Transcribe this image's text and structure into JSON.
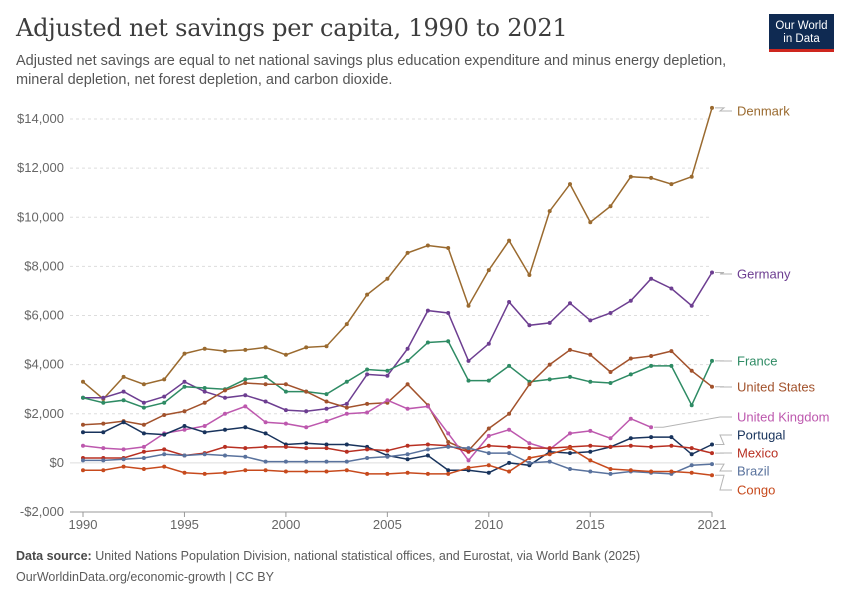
{
  "header": {
    "title": "Adjusted net savings per capita, 1990 to 2021",
    "subtitle": "Adjusted net savings are equal to net national savings plus education expenditure and minus energy depletion, mineral depletion, net forest depletion, and carbon dioxide.",
    "logo_line1": "Our World",
    "logo_line2": "in Data"
  },
  "footer": {
    "source_label": "Data source:",
    "source_text": " United Nations Population Division, national statistical offices, and Eurostat, via World Bank (2025)",
    "url": "OurWorldinData.org/economic-growth | CC BY"
  },
  "chart_data": {
    "type": "line",
    "xlim": [
      1989.5,
      2021.5
    ],
    "ylim": [
      -2000,
      14500
    ],
    "x_ticks": [
      1990,
      1995,
      2000,
      2005,
      2010,
      2015,
      2021
    ],
    "y_ticks": [
      -2000,
      0,
      2000,
      4000,
      6000,
      8000,
      10000,
      12000,
      14000
    ],
    "y_tick_labels": [
      "-$2,000",
      "$0",
      "$2,000",
      "$4,000",
      "$6,000",
      "$8,000",
      "$10,000",
      "$12,000",
      "$14,000"
    ],
    "grid": "horizontal dashed",
    "legend": "right, labels at line ends",
    "series": [
      {
        "name": "Denmark",
        "color": "#9a6a2f",
        "start": 1990,
        "values": [
          3300,
          2600,
          3500,
          3200,
          3400,
          4450,
          4650,
          4550,
          4600,
          4700,
          4400,
          4700,
          4750,
          5650,
          6850,
          7500,
          8550,
          8850,
          8750,
          6400,
          7850,
          9050,
          7650,
          10250,
          11350,
          9800,
          10450,
          11650,
          11600,
          11350,
          11650,
          14450
        ]
      },
      {
        "name": "Germany",
        "color": "#6d3e91",
        "start": 1990,
        "values": [
          2650,
          2650,
          2900,
          2450,
          2700,
          3300,
          2900,
          2650,
          2750,
          2500,
          2150,
          2100,
          2200,
          2400,
          3600,
          3550,
          4650,
          6200,
          6100,
          4150,
          4850,
          6550,
          5600,
          5700,
          6500,
          5800,
          6100,
          6600,
          7500,
          7100,
          6400,
          7750
        ]
      },
      {
        "name": "France",
        "color": "#2e8b64",
        "start": 1990,
        "values": [
          2650,
          2450,
          2550,
          2250,
          2450,
          3100,
          3050,
          3000,
          3400,
          3500,
          2900,
          2900,
          2800,
          3300,
          3800,
          3750,
          4150,
          4900,
          4950,
          3350,
          3350,
          3950,
          3300,
          3400,
          3500,
          3300,
          3250,
          3600,
          3950,
          3950,
          2350,
          4150
        ]
      },
      {
        "name": "United States",
        "color": "#a2522c",
        "start": 1990,
        "values": [
          1550,
          1600,
          1700,
          1550,
          1950,
          2100,
          2450,
          2950,
          3250,
          3200,
          3200,
          2900,
          2500,
          2250,
          2400,
          2450,
          3200,
          2350,
          850,
          500,
          1400,
          2000,
          3200,
          4000,
          4600,
          4400,
          3700,
          4250,
          4350,
          4550,
          3750,
          3100
        ]
      },
      {
        "name": "United Kingdom",
        "color": "#bd58ae",
        "start": 1990,
        "values": [
          700,
          600,
          550,
          650,
          1200,
          1350,
          1500,
          2000,
          2300,
          1650,
          1600,
          1450,
          1700,
          2000,
          2050,
          2550,
          2200,
          2300,
          1200,
          100,
          1100,
          1350,
          800,
          550,
          1200,
          1300,
          1000,
          1800,
          1450
        ]
      },
      {
        "name": "Portugal",
        "color": "#18335c",
        "start": 1990,
        "values": [
          1250,
          1250,
          1650,
          1200,
          1150,
          1500,
          1250,
          1350,
          1450,
          1200,
          750,
          800,
          750,
          750,
          650,
          300,
          150,
          300,
          -300,
          -300,
          -400,
          0,
          -100,
          450,
          400,
          450,
          650,
          1000,
          1050,
          1050,
          350,
          750
        ]
      },
      {
        "name": "Mexico",
        "color": "#b83022",
        "start": 1990,
        "values": [
          200,
          200,
          200,
          450,
          550,
          300,
          400,
          650,
          600,
          650,
          650,
          600,
          600,
          450,
          550,
          500,
          700,
          750,
          700,
          450,
          700,
          650,
          600,
          600,
          650,
          700,
          650,
          700,
          650,
          700,
          600,
          400
        ]
      },
      {
        "name": "Brazil",
        "color": "#59729d",
        "start": 1990,
        "values": [
          100,
          100,
          150,
          200,
          350,
          300,
          350,
          300,
          250,
          50,
          50,
          50,
          50,
          50,
          200,
          250,
          350,
          550,
          650,
          600,
          400,
          400,
          0,
          50,
          -250,
          -350,
          -450,
          -350,
          -400,
          -450,
          -100,
          -50
        ]
      },
      {
        "name": "Congo",
        "color": "#c74a1d",
        "start": 1990,
        "values": [
          -300,
          -300,
          -150,
          -250,
          -150,
          -400,
          -450,
          -400,
          -300,
          -300,
          -350,
          -350,
          -350,
          -300,
          -450,
          -450,
          -400,
          -450,
          -450,
          -200,
          -100,
          -350,
          200,
          350,
          600,
          100,
          -250,
          -300,
          -350,
          -350,
          -400,
          -500
        ]
      }
    ]
  }
}
